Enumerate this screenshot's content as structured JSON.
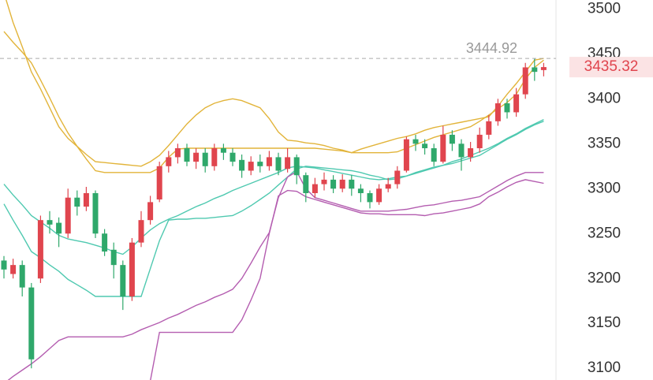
{
  "chart_data": {
    "type": "candlestick",
    "ylim": [
      3087,
      3510
    ],
    "yticks": [
      3100,
      3150,
      3200,
      3250,
      3300,
      3350,
      3400,
      3450,
      3500
    ],
    "up_color": "#e0454e",
    "down_color": "#2fa86b",
    "candles": {
      "open": [
        3220,
        3205,
        3215,
        3190,
        3200,
        3265,
        3262,
        3250,
        3290,
        3280,
        3295,
        3250,
        3232,
        3215,
        3180,
        3240,
        3265,
        3288,
        3325,
        3335,
        3345,
        3330,
        3340,
        3325,
        3345,
        3340,
        3332,
        3320,
        3330,
        3325,
        3335,
        3322,
        3335,
        3315,
        3295,
        3305,
        3310,
        3300,
        3310,
        3300,
        3295,
        3285,
        3300,
        3305,
        3320,
        3355,
        3350,
        3345,
        3330,
        3360,
        3350,
        3335,
        3345,
        3360,
        3375,
        3395,
        3385,
        3405,
        3435,
        3432
      ],
      "high": [
        3225,
        3222,
        3220,
        3195,
        3270,
        3275,
        3268,
        3300,
        3298,
        3302,
        3298,
        3255,
        3240,
        3220,
        3245,
        3275,
        3292,
        3330,
        3342,
        3350,
        3350,
        3345,
        3345,
        3350,
        3350,
        3345,
        3338,
        3336,
        3338,
        3342,
        3340,
        3345,
        3338,
        3318,
        3312,
        3318,
        3315,
        3316,
        3315,
        3305,
        3298,
        3305,
        3312,
        3325,
        3358,
        3360,
        3355,
        3350,
        3370,
        3365,
        3355,
        3352,
        3368,
        3382,
        3400,
        3400,
        3412,
        3440,
        3444.92,
        3440
      ],
      "low": [
        3200,
        3200,
        3180,
        3100,
        3195,
        3250,
        3235,
        3245,
        3270,
        3275,
        3245,
        3225,
        3200,
        3165,
        3175,
        3235,
        3260,
        3285,
        3318,
        3328,
        3325,
        3322,
        3318,
        3320,
        3332,
        3325,
        3312,
        3315,
        3318,
        3320,
        3315,
        3318,
        3305,
        3285,
        3290,
        3298,
        3295,
        3296,
        3292,
        3285,
        3278,
        3282,
        3296,
        3300,
        3318,
        3342,
        3338,
        3325,
        3328,
        3342,
        3320,
        3330,
        3340,
        3355,
        3370,
        3378,
        3380,
        3400,
        3420,
        3425
      ],
      "close": [
        3210,
        3215,
        3190,
        3110,
        3265,
        3260,
        3250,
        3290,
        3280,
        3295,
        3250,
        3230,
        3215,
        3180,
        3240,
        3265,
        3285,
        3325,
        3335,
        3345,
        3330,
        3340,
        3325,
        3345,
        3340,
        3330,
        3320,
        3330,
        3325,
        3335,
        3320,
        3335,
        3315,
        3295,
        3305,
        3310,
        3300,
        3310,
        3300,
        3295,
        3285,
        3300,
        3305,
        3320,
        3355,
        3350,
        3345,
        3330,
        3360,
        3350,
        3335,
        3345,
        3360,
        3375,
        3395,
        3385,
        3405,
        3435,
        3430,
        3435.32
      ]
    },
    "series": [
      {
        "color": "#e2b43a",
        "values": [
          3518,
          3485,
          3458,
          3430,
          3411,
          3390,
          3369,
          3356,
          3347,
          3338,
          3330,
          3329,
          3328,
          3327,
          3326,
          3325,
          3330,
          3337,
          3348,
          3360,
          3372,
          3382,
          3390,
          3395,
          3398,
          3400,
          3398,
          3394,
          3390,
          3378,
          3363,
          3354,
          3353,
          3351,
          3350,
          3348,
          3345,
          3343,
          3340,
          3340,
          3340,
          3340,
          3340,
          3341,
          3345,
          3349,
          3353,
          3357,
          3360,
          3363,
          3366,
          3369,
          3375,
          3382,
          3389,
          3396,
          3405,
          3422,
          3435,
          3443
        ]
      },
      {
        "color": "#e2b43a",
        "values": [
          3475,
          3463,
          3452,
          3440,
          3421,
          3401,
          3380,
          3362,
          3347,
          3333,
          3320,
          3318,
          3318,
          3318,
          3318,
          3318,
          3318,
          3323,
          3335,
          3344,
          3345,
          3345,
          3345,
          3345,
          3345,
          3345,
          3345,
          3345,
          3345,
          3345,
          3345,
          3345,
          3345,
          3345,
          3345,
          3344,
          3343,
          3342,
          3340,
          3344,
          3347,
          3350,
          3353,
          3356,
          3358,
          3361,
          3365,
          3368,
          3370,
          3372,
          3374,
          3376,
          3378,
          3380,
          3392,
          3405,
          3417,
          3430,
          3443,
          3445
        ]
      },
      {
        "color": "#4fc9b0",
        "values": [
          3305,
          3293,
          3282,
          3270,
          3263,
          3256,
          3248,
          3244,
          3242,
          3240,
          3237,
          3234,
          3230,
          3227,
          3235,
          3245,
          3254,
          3261,
          3266,
          3270,
          3275,
          3280,
          3284,
          3289,
          3293,
          3298,
          3302,
          3306,
          3310,
          3314,
          3318,
          3323,
          3325,
          3324,
          3323,
          3321,
          3319,
          3317,
          3315,
          3313,
          3311,
          3310,
          3311,
          3313,
          3314,
          3317,
          3320,
          3323,
          3326,
          3328,
          3331,
          3334,
          3337,
          3343,
          3349,
          3355,
          3360,
          3366,
          3371,
          3375
        ]
      },
      {
        "color": "#4fc9b0",
        "values": [
          3283,
          3265,
          3248,
          3230,
          3223,
          3215,
          3208,
          3199,
          3193,
          3187,
          3180,
          3180,
          3180,
          3180,
          3180,
          3180,
          3211,
          3242,
          3265,
          3266,
          3266,
          3267,
          3267,
          3268,
          3269,
          3270,
          3275,
          3281,
          3288,
          3295,
          3304,
          3313,
          3322,
          3325,
          3324,
          3323,
          3322,
          3321,
          3320,
          3318,
          3315,
          3313,
          3310,
          3311,
          3314,
          3318,
          3321,
          3324,
          3326,
          3330,
          3333,
          3337,
          3341,
          3345,
          3350,
          3356,
          3361,
          3367,
          3372,
          3377
        ]
      },
      {
        "color": "#b45db0",
        "values": [
          3083,
          3091,
          3098,
          3105,
          3113,
          3122,
          3131,
          3135,
          3135,
          3135,
          3135,
          3135,
          3135,
          3135,
          3138,
          3143,
          3147,
          3151,
          3156,
          3160,
          3165,
          3170,
          3174,
          3179,
          3183,
          3188,
          3200,
          3217,
          3235,
          3251,
          3290,
          3313,
          3319,
          3300,
          3290,
          3287,
          3284,
          3281,
          3278,
          3275,
          3275,
          3275,
          3275,
          3276,
          3277,
          3279,
          3281,
          3282,
          3284,
          3286,
          3287,
          3289,
          3291,
          3297,
          3303,
          3309,
          3314,
          3318,
          3318,
          3318
        ]
      },
      {
        "color": "#b45db0",
        "values": [
          null,
          null,
          null,
          null,
          null,
          null,
          null,
          null,
          null,
          null,
          null,
          null,
          null,
          null,
          null,
          null,
          3086,
          3140,
          3140,
          3140,
          3140,
          3140,
          3140,
          3140,
          3140,
          3140,
          3154,
          3176,
          3200,
          3250,
          3292,
          3298,
          3297,
          3291,
          3288,
          3285,
          3282,
          3279,
          3276,
          3273,
          3272,
          3272,
          3271,
          3271,
          3271,
          3271,
          3270,
          3272,
          3273,
          3275,
          3277,
          3279,
          3283,
          3291,
          3296,
          3302,
          3307,
          3310,
          3308,
          3306
        ]
      }
    ]
  }
}
